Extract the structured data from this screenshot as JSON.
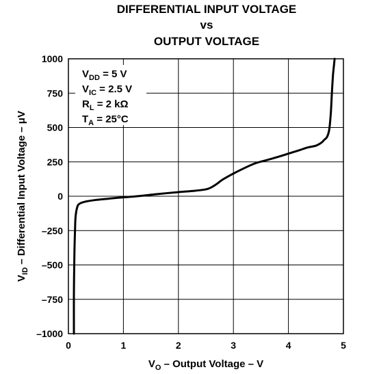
{
  "chart_data": {
    "type": "line",
    "title_lines": [
      "DIFFERENTIAL INPUT VOLTAGE",
      "vs",
      "OUTPUT VOLTAGE"
    ],
    "xlabel": {
      "main": "V",
      "sub": "O",
      "rest": " – Output Voltage – V"
    },
    "ylabel": {
      "main": "V",
      "sub": "ID",
      "rest": "  – Differential Input Voltage – μV"
    },
    "xlim": [
      0,
      5
    ],
    "ylim": [
      -1000,
      1000
    ],
    "x_ticks": [
      0,
      1,
      2,
      3,
      4,
      5
    ],
    "x_tick_labels": [
      "0",
      "1",
      "2",
      "3",
      "4",
      "5"
    ],
    "y_ticks": [
      1000,
      750,
      500,
      250,
      0,
      -250,
      -500,
      -750,
      -1000
    ],
    "y_tick_labels": [
      "1000",
      "750",
      "500",
      "250",
      "0",
      "–250",
      "–500",
      "–750",
      "–1000"
    ],
    "grid": true,
    "annotations": [
      {
        "main": "V",
        "sub": "DD",
        "rest": " = 5 V"
      },
      {
        "main": "V",
        "sub": "IC",
        "rest": " = 2.5 V"
      },
      {
        "main": "R",
        "sub": "L",
        "rest": " = 2 kΩ"
      },
      {
        "main": "T",
        "sub": "A",
        "rest": " = 25°C"
      }
    ],
    "series": [
      {
        "x": [
          0.1,
          0.1,
          0.11,
          0.12,
          0.13,
          0.16,
          0.2,
          0.3,
          0.5,
          0.8,
          1.0,
          1.3,
          1.6,
          2.0,
          2.3,
          2.5,
          2.6,
          2.7,
          2.8,
          3.0,
          3.2,
          3.4,
          3.6,
          3.8,
          4.0,
          4.2,
          4.35,
          4.5,
          4.6,
          4.65,
          4.7,
          4.74,
          4.77,
          4.79,
          4.81,
          4.83,
          4.84
        ],
        "y": [
          -1000,
          -700,
          -400,
          -250,
          -150,
          -80,
          -55,
          -40,
          -27,
          -15,
          -8,
          2,
          15,
          30,
          40,
          50,
          65,
          90,
          120,
          165,
          205,
          240,
          262,
          285,
          310,
          335,
          355,
          368,
          390,
          410,
          430,
          480,
          600,
          750,
          880,
          960,
          1000
        ]
      }
    ]
  }
}
